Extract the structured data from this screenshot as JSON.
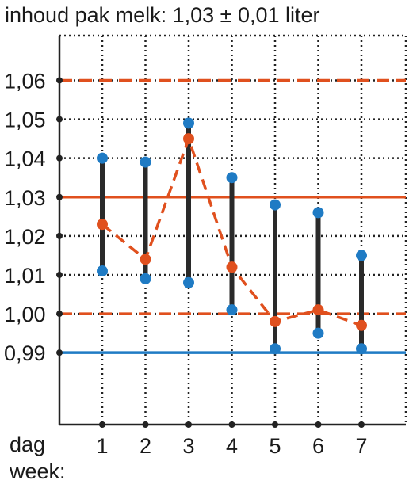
{
  "chart_data": {
    "type": "line",
    "title": "inhoud pak melk: 1,03 ± 0,01 liter",
    "xlabel_line1": "dag",
    "xlabel_line2": "week:",
    "ylabel": "",
    "categories": [
      "1",
      "2",
      "3",
      "4",
      "5",
      "6",
      "7"
    ],
    "y_ticks": [
      "0,99",
      "1,00",
      "1,01",
      "1,02",
      "1,03",
      "1,04",
      "1,05",
      "1,06"
    ],
    "y_tick_values": [
      0.99,
      1.0,
      1.01,
      1.02,
      1.03,
      1.04,
      1.05,
      1.06
    ],
    "ylim": [
      0.9715,
      1.0715
    ],
    "grid": true,
    "grid_style": "dotted",
    "reference_lines": [
      {
        "value": 1.06,
        "style": "dashed",
        "color": "#e0501e"
      },
      {
        "value": 1.03,
        "style": "solid",
        "color": "#e0501e"
      },
      {
        "value": 1.0,
        "style": "dashed",
        "color": "#e0501e"
      },
      {
        "value": 0.99,
        "style": "solid",
        "color": "#1f7bc4"
      }
    ],
    "series": [
      {
        "kind": "range",
        "color": "#2a2a2a",
        "dot_color": "#1f7bc4",
        "high": [
          1.04,
          1.039,
          1.049,
          1.035,
          1.028,
          1.026,
          1.015
        ],
        "low": [
          1.011,
          1.009,
          1.008,
          1.001,
          0.991,
          0.995,
          0.991
        ]
      },
      {
        "kind": "mean",
        "color": "#e0501e",
        "line_style": "dashed",
        "values": [
          1.023,
          1.014,
          1.045,
          1.012,
          0.998,
          1.001,
          0.997
        ]
      }
    ]
  }
}
